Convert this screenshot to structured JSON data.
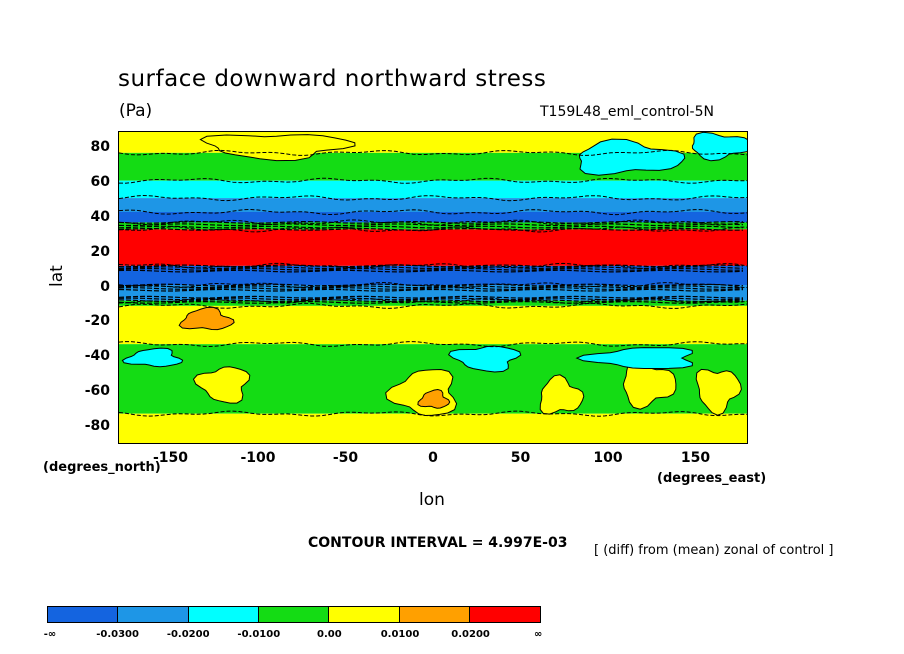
{
  "title": "surface downward northward stress",
  "units": "(Pa)",
  "experiment": "T159L48_eml_control-5N",
  "chart_data": {
    "type": "heatmap",
    "title": "surface downward northward stress",
    "subtitle": "(Pa)",
    "xlabel": "lon",
    "ylabel": "lat",
    "x_coord_label": "(degrees_east)",
    "y_coord_label": "(degrees_north)",
    "xlim": [
      -180,
      180
    ],
    "ylim": [
      -90,
      90
    ],
    "xticks": [
      -150,
      -100,
      -50,
      0,
      50,
      100,
      150
    ],
    "xtick_labels": [
      "-150",
      "-100",
      "-50",
      "0",
      "50",
      "100",
      "150"
    ],
    "yticks": [
      80,
      60,
      40,
      20,
      0,
      -20,
      -40,
      -60,
      -80
    ],
    "ytick_labels": [
      "80",
      "60",
      "40",
      "20",
      "0",
      "-20",
      "-40",
      "-60",
      "-80"
    ],
    "contour_interval": "CONTOUR INTERVAL = 4.997E-03",
    "note": "[ (diff) from (mean) zonal of control ]",
    "colorbar": {
      "colors": [
        "#1464e0",
        "#1e96e6",
        "#00ffff",
        "#14dc14",
        "#ffff00",
        "#ffa000",
        "#ff0000"
      ],
      "labels": [
        "-∞",
        "-0.0300",
        "-0.0200",
        "-0.0100",
        "0.00",
        "0.0100",
        "0.0200",
        "∞"
      ],
      "levels": [
        -0.03,
        -0.02,
        -0.01,
        0.0,
        0.01,
        0.02
      ]
    },
    "zonal_bands": [
      {
        "lat_top": 90,
        "lat_bottom": 78,
        "value": 0.005,
        "color": "#ffff00"
      },
      {
        "lat_top": 78,
        "lat_bottom": 62,
        "value": -0.005,
        "color": "#14dc14"
      },
      {
        "lat_top": 62,
        "lat_bottom": 52,
        "value": -0.015,
        "color": "#00ffff"
      },
      {
        "lat_top": 52,
        "lat_bottom": 44,
        "value": -0.025,
        "color": "#1e96e6"
      },
      {
        "lat_top": 44,
        "lat_bottom": 38,
        "value": -0.035,
        "color": "#1464e0"
      },
      {
        "lat_top": 38,
        "lat_bottom": 34,
        "value": -0.005,
        "color": "#14dc14"
      },
      {
        "lat_top": 34,
        "lat_bottom": 13,
        "value": 0.025,
        "color": "#ff0000"
      },
      {
        "lat_top": 13,
        "lat_bottom": 2,
        "value": -0.035,
        "color": "#1464e0"
      },
      {
        "lat_top": 2,
        "lat_bottom": -7,
        "value": -0.025,
        "color": "#1e96e6"
      },
      {
        "lat_top": -7,
        "lat_bottom": -10,
        "value": -0.005,
        "color": "#14dc14"
      },
      {
        "lat_top": -10,
        "lat_bottom": -32,
        "value": 0.005,
        "color": "#ffff00"
      },
      {
        "lat_top": -32,
        "lat_bottom": -72,
        "value": -0.005,
        "color": "#14dc14"
      },
      {
        "lat_top": -72,
        "lat_bottom": -90,
        "value": 0.005,
        "color": "#ffff00"
      }
    ],
    "features": [
      {
        "lon": -130,
        "lat": -18,
        "rlon": 14,
        "rlat": 6,
        "value": 0.015,
        "color": "#ffa000"
      },
      {
        "lon": 110,
        "lat": 75,
        "rlon": 30,
        "rlat": 9,
        "value": -0.015,
        "color": "#00ffff"
      },
      {
        "lon": 163,
        "lat": 82,
        "rlon": 17,
        "rlat": 7,
        "value": -0.015,
        "color": "#00ffff"
      },
      {
        "lon": -90,
        "lat": 82,
        "rlon": 40,
        "rlat": 7,
        "value": 0.005,
        "color": "#ffff00"
      },
      {
        "lon": -120,
        "lat": -55,
        "rlon": 14,
        "rlat": 10,
        "value": 0.005,
        "color": "#ffff00"
      },
      {
        "lon": -5,
        "lat": -60,
        "rlon": 18,
        "rlat": 13,
        "value": 0.005,
        "color": "#ffff00"
      },
      {
        "lon": 0,
        "lat": -64,
        "rlon": 8,
        "rlat": 5,
        "value": 0.015,
        "color": "#ffa000"
      },
      {
        "lon": 72,
        "lat": -62,
        "rlon": 12,
        "rlat": 10,
        "value": 0.005,
        "color": "#ffff00"
      },
      {
        "lon": 122,
        "lat": -55,
        "rlon": 15,
        "rlat": 12,
        "value": 0.005,
        "color": "#ffff00"
      },
      {
        "lon": 162,
        "lat": -58,
        "rlon": 12,
        "rlat": 12,
        "value": 0.005,
        "color": "#ffff00"
      },
      {
        "lon": 30,
        "lat": -40,
        "rlon": 18,
        "rlat": 7,
        "value": -0.015,
        "color": "#00ffff"
      },
      {
        "lon": 120,
        "lat": -40,
        "rlon": 30,
        "rlat": 6,
        "value": -0.015,
        "color": "#00ffff"
      },
      {
        "lon": -160,
        "lat": -40,
        "rlon": 15,
        "rlat": 5,
        "value": -0.015,
        "color": "#00ffff"
      }
    ]
  }
}
